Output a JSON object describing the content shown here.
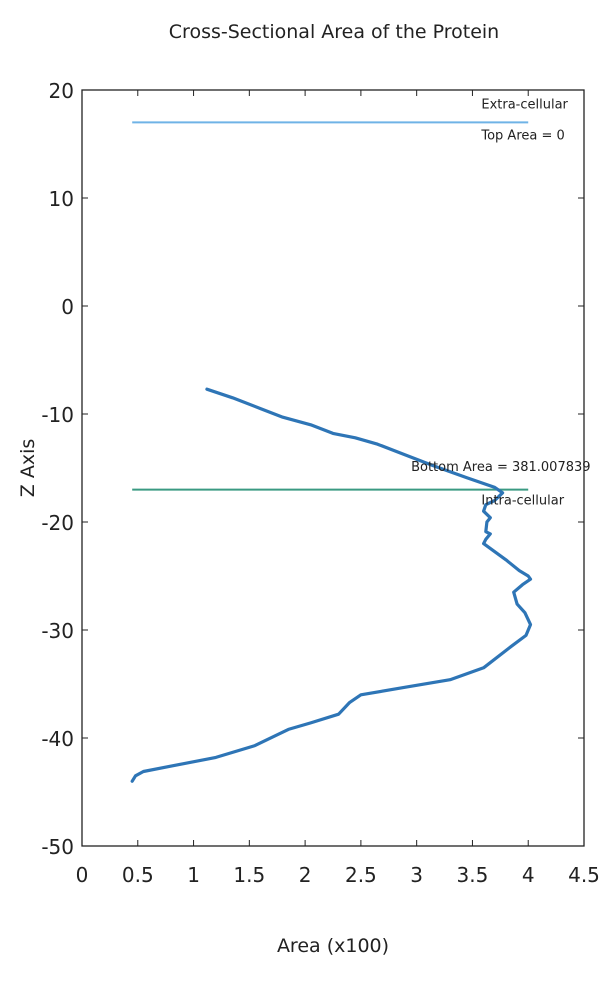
{
  "chart_data": {
    "type": "line",
    "title": "Cross-Sectional Area of the Protein",
    "xlabel": "Area (x100)",
    "ylabel": "Z Axis",
    "xlim": [
      0,
      4.5
    ],
    "ylim": [
      -50,
      20
    ],
    "xticks": [
      0,
      0.5,
      1,
      1.5,
      2,
      2.5,
      3,
      3.5,
      4,
      4.5
    ],
    "yticks": [
      20,
      10,
      0,
      -10,
      -20,
      -30,
      -40,
      -50
    ],
    "grid": false,
    "series": [
      {
        "color": "#2e75b6",
        "x": [
          1.12,
          1.35,
          1.6,
          1.8,
          2.05,
          2.25,
          2.45,
          2.65,
          2.9,
          3.15,
          3.45,
          3.7,
          3.77,
          3.7,
          3.62,
          3.6,
          3.66,
          3.63,
          3.62,
          3.66,
          3.62,
          3.6,
          3.68,
          3.8,
          3.92,
          4.0,
          4.02,
          3.95,
          3.87,
          3.9,
          3.97,
          4.02,
          3.98,
          3.85,
          3.6,
          3.3,
          2.9,
          2.5,
          2.4,
          2.3,
          2.05,
          1.85,
          1.75,
          1.55,
          1.2,
          0.8,
          0.55,
          0.48,
          0.45
        ],
        "y": [
          -7.7,
          -8.5,
          -9.5,
          -10.3,
          -11.0,
          -11.8,
          -12.2,
          -12.8,
          -13.8,
          -14.8,
          -15.9,
          -16.8,
          -17.3,
          -18.0,
          -18.4,
          -19.0,
          -19.6,
          -20.0,
          -20.9,
          -21.1,
          -21.6,
          -22.0,
          -22.6,
          -23.5,
          -24.5,
          -25.0,
          -25.3,
          -25.8,
          -26.5,
          -27.6,
          -28.4,
          -29.5,
          -30.5,
          -31.5,
          -33.5,
          -34.6,
          -35.3,
          -36.0,
          -36.7,
          -37.8,
          -38.6,
          -39.2,
          -39.7,
          -40.7,
          -41.8,
          -42.6,
          -43.1,
          -43.5,
          -44.0
        ]
      }
    ],
    "reference_lines": [
      {
        "y": 17,
        "color": "#6fb3e6",
        "x": [
          0.45,
          4.0
        ]
      },
      {
        "y": -17,
        "color": "#3a9a82",
        "x": [
          0.45,
          4.0
        ]
      }
    ],
    "annotations": [
      {
        "text": "Extra-cellular",
        "x": 3.58,
        "y": 18.3
      },
      {
        "text": "Top Area = 0",
        "x": 3.58,
        "y": 15.4
      },
      {
        "text": "Bottom Area = 381.007839",
        "x": 2.95,
        "y": -15.3
      },
      {
        "text": "Intra-cellular",
        "x": 3.58,
        "y": -18.4
      }
    ]
  }
}
